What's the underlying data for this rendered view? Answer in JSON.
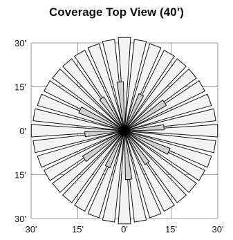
{
  "title": "Coverage Top View (40’)",
  "colors": {
    "grid": "#9a9a9a",
    "outline": "#111111",
    "outer_wedge": "#f3f3f3",
    "inner_wedge": "#cfcfcf",
    "center": "#000000"
  },
  "chart_data": {
    "type": "diagram",
    "title": "Coverage Top View (40’)",
    "x_tick_labels": [
      "30'",
      "15'",
      "0'",
      "15'",
      "30'"
    ],
    "y_tick_labels": [
      "30'",
      "15'",
      "0'",
      "15'",
      "30'"
    ],
    "x_range_ft": [
      -30,
      30
    ],
    "y_range_ft": [
      -30,
      30
    ],
    "grid": true,
    "beams": {
      "count": 36,
      "outer_reach_ft": 30,
      "inner_reach_ft": 15
    }
  }
}
